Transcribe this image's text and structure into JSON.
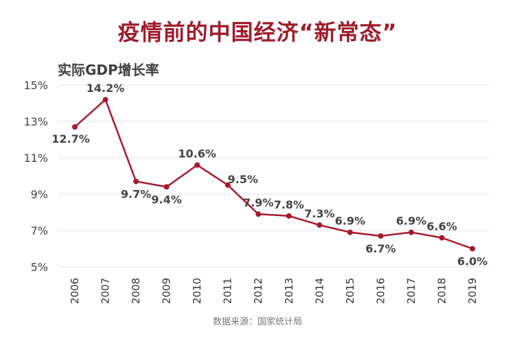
{
  "chart_data": {
    "type": "line",
    "title": "疫情前的中国经济“新常态”",
    "ylabel": "实际GDP增长率",
    "source": "数据来源：国家统计局",
    "categories": [
      "2006",
      "2007",
      "2008",
      "2009",
      "2010",
      "2011",
      "2012",
      "2013",
      "2014",
      "2015",
      "2016",
      "2017",
      "2018",
      "2019"
    ],
    "series": [
      {
        "values": [
          12.7,
          14.2,
          9.7,
          9.4,
          10.6,
          9.5,
          7.9,
          7.8,
          7.3,
          6.9,
          6.7,
          6.9,
          6.6,
          6.0
        ],
        "labels": [
          "12.7%",
          "14.2%",
          "9.7%",
          "9.4%",
          "10.6%",
          "9.5%",
          "7.9%",
          "7.8%",
          "7.3%",
          "6.9%",
          "6.7%",
          "6.9%",
          "6.6%",
          "6.0%"
        ]
      }
    ],
    "yticks": [
      "5%",
      "7%",
      "9%",
      "11%",
      "13%",
      "15%"
    ],
    "ytick_values": [
      5,
      7,
      9,
      11,
      13,
      15
    ],
    "ylim": [
      5,
      15
    ],
    "grid": true,
    "legend": "none",
    "line_color": "#a8192e"
  }
}
